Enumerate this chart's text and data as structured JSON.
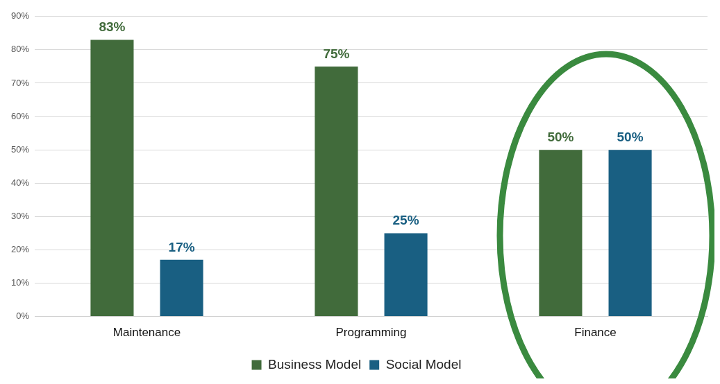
{
  "chart_data": {
    "type": "bar",
    "categories": [
      "Maintenance",
      "Programming",
      "Finance"
    ],
    "series": [
      {
        "name": "Business Model",
        "color": "#416b3b",
        "values": [
          83,
          75,
          50
        ],
        "value_labels": [
          "83%",
          "75%",
          "50%"
        ]
      },
      {
        "name": "Social Model",
        "color": "#195f82",
        "values": [
          17,
          25,
          50
        ],
        "value_labels": [
          "17%",
          "25%",
          "50%"
        ]
      }
    ],
    "ylim": [
      0,
      90
    ],
    "yticks": [
      {
        "value": 0,
        "label": "0%"
      },
      {
        "value": 10,
        "label": "10%"
      },
      {
        "value": 20,
        "label": "20%"
      },
      {
        "value": 30,
        "label": "30%"
      },
      {
        "value": 40,
        "label": "40%"
      },
      {
        "value": 50,
        "label": "50%"
      },
      {
        "value": 60,
        "label": "60%"
      },
      {
        "value": 70,
        "label": "70%"
      },
      {
        "value": 80,
        "label": "80%"
      },
      {
        "value": 90,
        "label": "90%"
      }
    ],
    "grid": "y",
    "legend": "bottom"
  }
}
